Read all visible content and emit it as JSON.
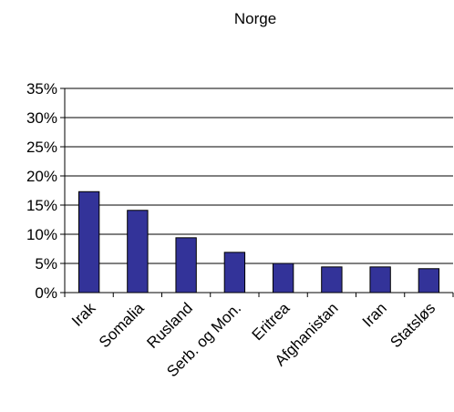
{
  "chart_data": {
    "type": "bar",
    "title": "Norge",
    "xlabel": "",
    "ylabel": "",
    "categories": [
      "Irak",
      "Somalia",
      "Rusland",
      "Serb. og Mon.",
      "Eritrea",
      "Afghanistan",
      "Iran",
      "Statsløs"
    ],
    "values": [
      17.3,
      14.1,
      9.4,
      6.9,
      5.0,
      4.4,
      4.4,
      4.1
    ],
    "ylim": [
      0,
      35
    ],
    "yticks": [
      0,
      5,
      10,
      15,
      20,
      25,
      30,
      35
    ],
    "ytick_labels": [
      "0%",
      "5%",
      "10%",
      "15%",
      "20%",
      "25%",
      "30%",
      "35%"
    ],
    "grid": true,
    "legend": "none",
    "bar_color": "#333399",
    "bar_edge_color": "#000000"
  }
}
